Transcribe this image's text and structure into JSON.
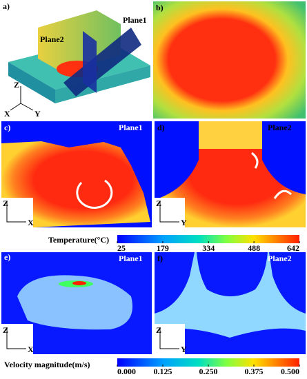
{
  "panels": [
    {
      "label": "a)",
      "planes": [
        "Plane2",
        "Plane1"
      ],
      "axes": [
        "Z",
        "X",
        "Y"
      ]
    },
    {
      "label": "b)"
    },
    {
      "label": "c)",
      "plane": "Plane1",
      "axes": [
        "Z",
        "X"
      ]
    },
    {
      "label": "d)",
      "plane": "Plane2",
      "axes": [
        "Z",
        "Y"
      ]
    },
    {
      "label": "e)",
      "plane": "Plane1",
      "axes": [
        "Z",
        "X"
      ]
    },
    {
      "label": "f)",
      "plane": "Plane2",
      "axes": [
        "Z",
        "Y"
      ]
    }
  ],
  "colorbars": [
    {
      "title": "Temperature(°C)",
      "ticks": [
        25,
        179,
        334,
        488,
        642
      ]
    },
    {
      "title": "Velocity magnitude(m/s)",
      "ticks": [
        {
          "value": 0,
          "label": "0.000"
        },
        {
          "value": 0.125,
          "label": "0.125"
        },
        {
          "value": 0.25,
          "label": "0.250"
        },
        {
          "value": 0.375,
          "label": "0.375"
        },
        {
          "value": 0.5,
          "label": "0.500"
        }
      ]
    }
  ]
}
